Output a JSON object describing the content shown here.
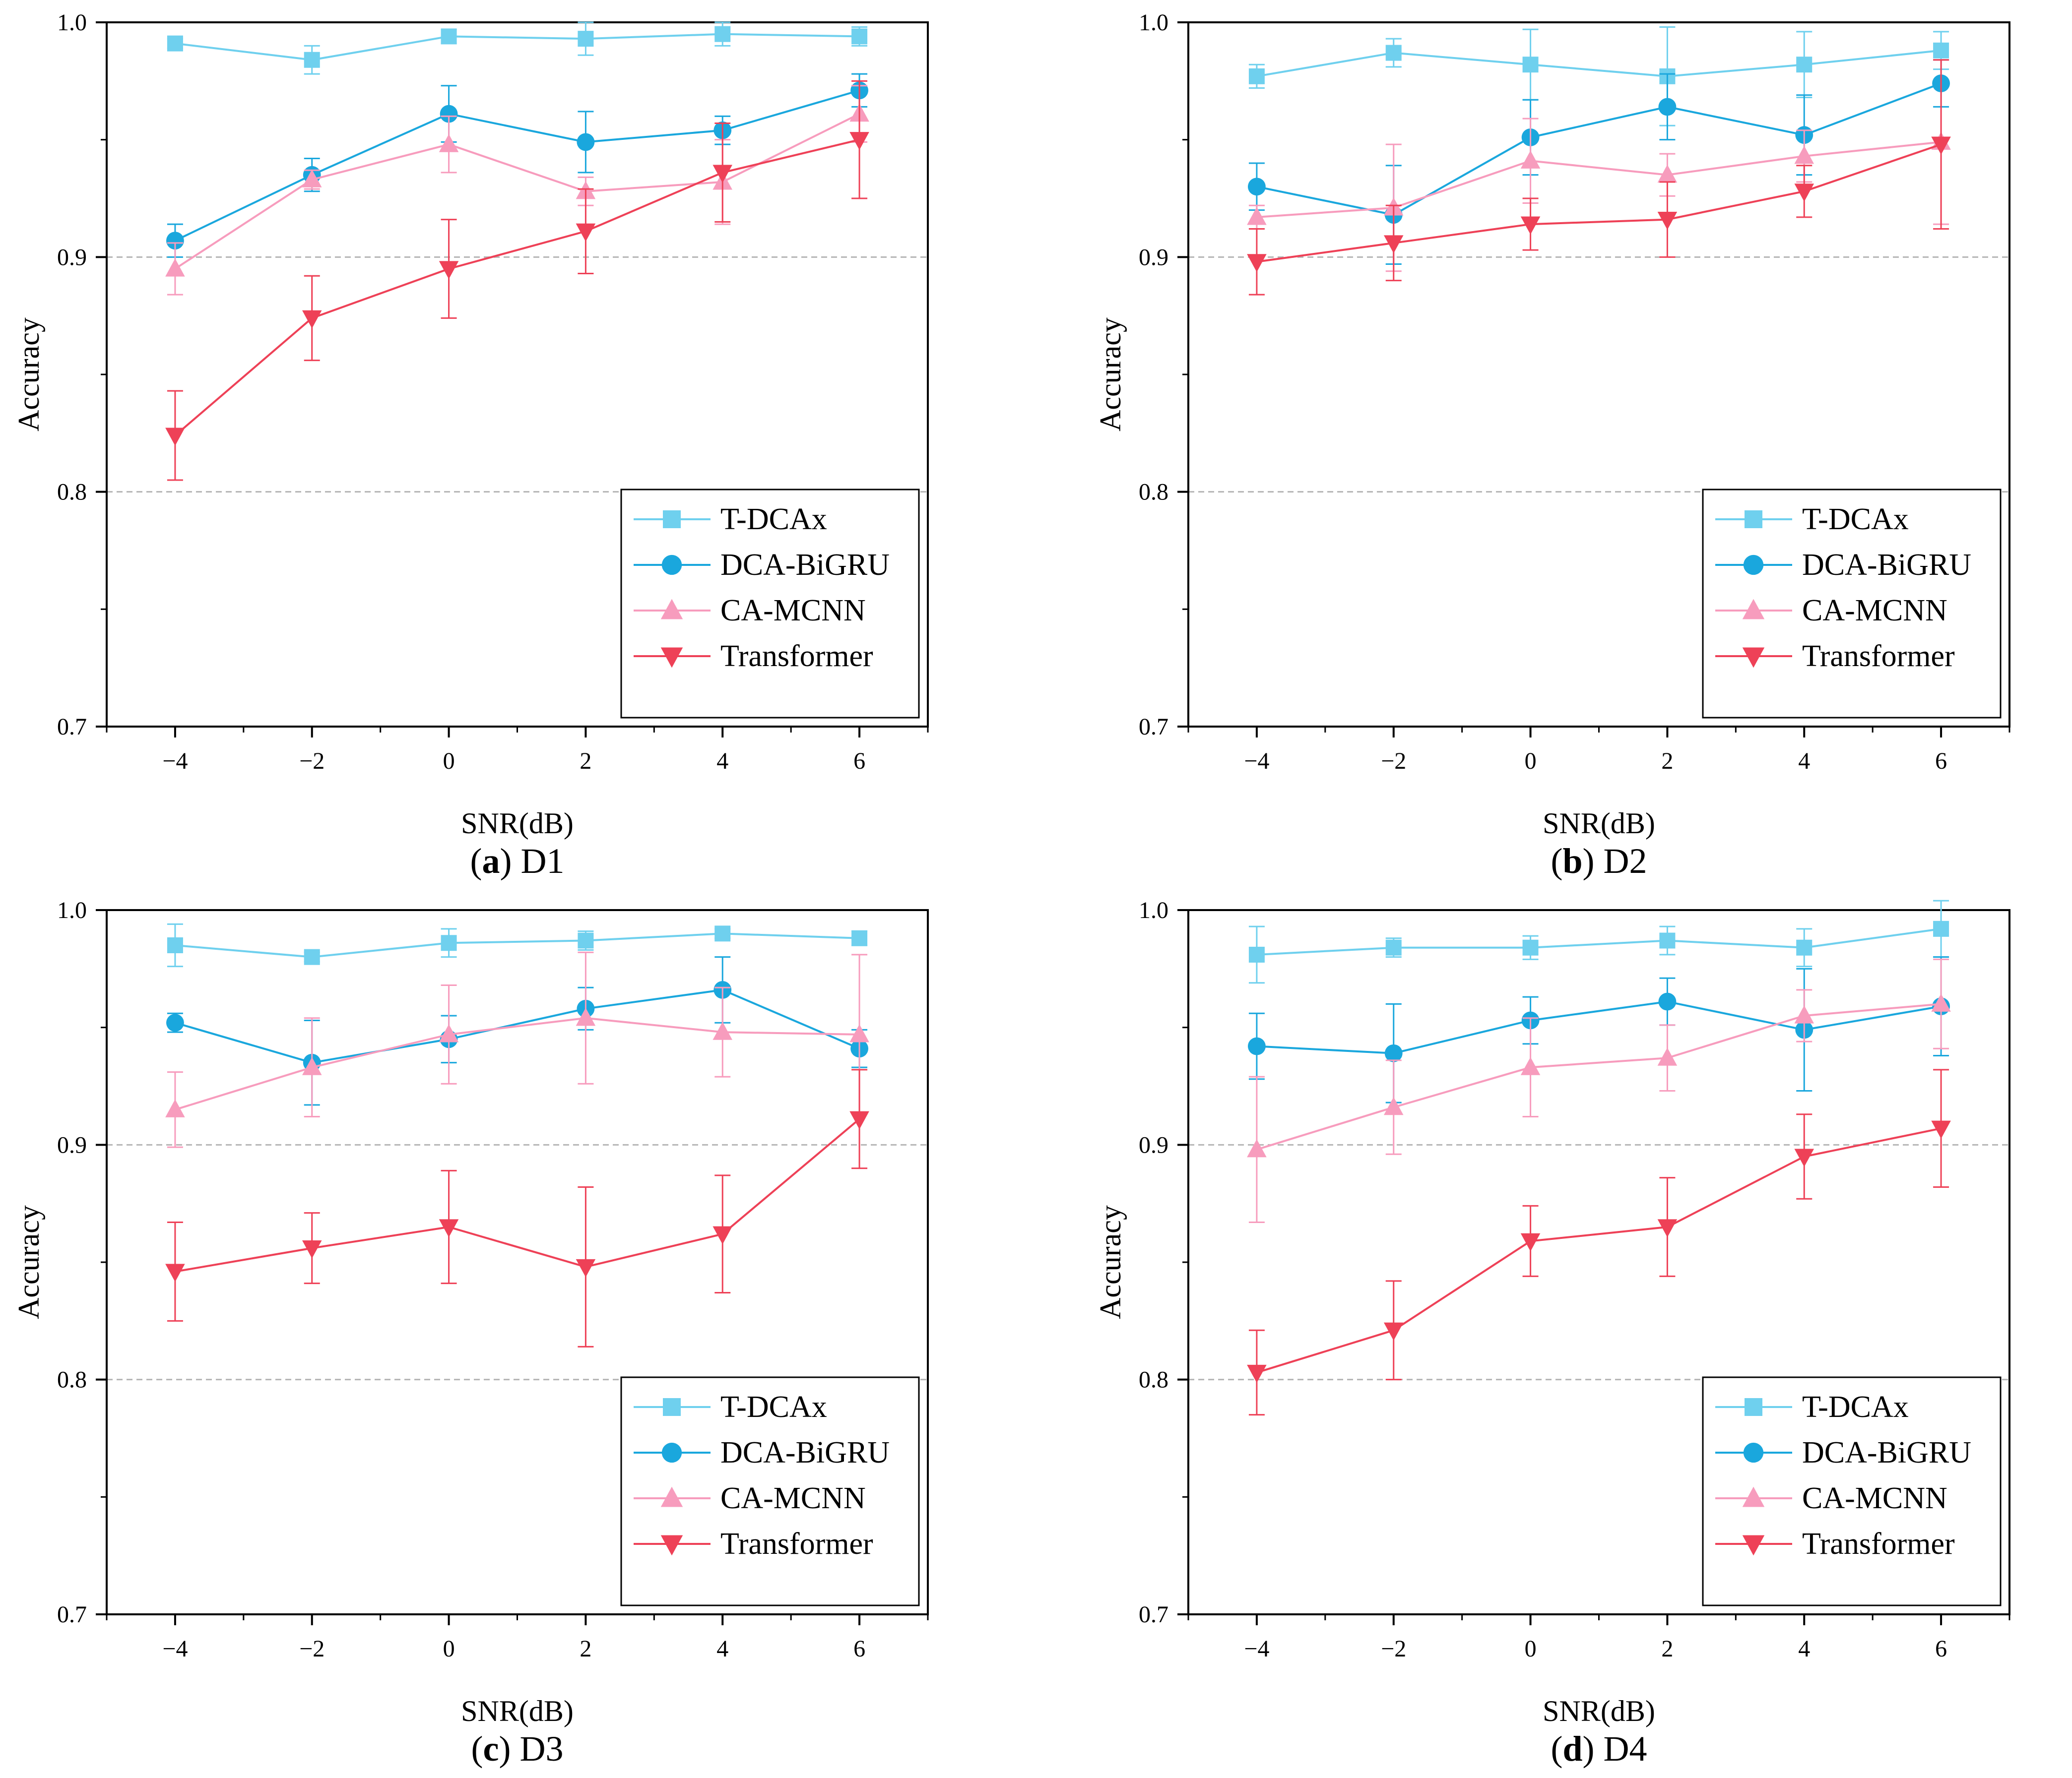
{
  "colors": {
    "T-DCAx": "#6fd0ee",
    "DCA-BiGRU": "#1aa7dd",
    "CA-MCNN": "#f79cbd",
    "Transformer": "#ee4157",
    "grid": "#b5b5b5"
  },
  "chart_data": [
    {
      "type": "line",
      "caption_letter": "(a)",
      "caption_text": "D1",
      "xlabel": "SNR(dB)",
      "ylabel": "Accuracy",
      "x": [
        -4,
        -2,
        0,
        2,
        4,
        6
      ],
      "xticklabels": [
        "−4",
        "−2",
        "0",
        "2",
        "4",
        "6"
      ],
      "yticks": [
        0.7,
        0.8,
        0.9,
        1.0
      ],
      "yticklabels": [
        "0.7",
        "0.8",
        "0.9",
        "1.0"
      ],
      "ylim": [
        0.7,
        1.0
      ],
      "xlim": [
        -5,
        7
      ],
      "grid": "dashed horizontal at 0.8 and 0.9",
      "legend_position": "bottom-right",
      "series": [
        {
          "name": "T-DCAx",
          "marker": "square",
          "values": [
            0.991,
            0.984,
            0.994,
            0.993,
            0.995,
            0.994
          ],
          "errors": [
            0.002,
            0.006,
            0.003,
            0.007,
            0.005,
            0.004
          ]
        },
        {
          "name": "DCA-BiGRU",
          "marker": "circle",
          "values": [
            0.907,
            0.935,
            0.961,
            0.949,
            0.954,
            0.971
          ],
          "errors": [
            0.007,
            0.007,
            0.012,
            0.013,
            0.006,
            0.007
          ]
        },
        {
          "name": "CA-MCNN",
          "marker": "triangle-up",
          "values": [
            0.895,
            0.933,
            0.948,
            0.928,
            0.932,
            0.961
          ],
          "errors": [
            0.011,
            0.004,
            0.012,
            0.006,
            0.018,
            0.012
          ]
        },
        {
          "name": "Transformer",
          "marker": "triangle-down",
          "values": [
            0.824,
            0.874,
            0.895,
            0.911,
            0.936,
            0.95
          ],
          "errors": [
            0.019,
            0.018,
            0.021,
            0.018,
            0.021,
            0.025
          ]
        }
      ]
    },
    {
      "type": "line",
      "caption_letter": "(b)",
      "caption_text": "D2",
      "xlabel": "SNR(dB)",
      "ylabel": "Accuracy",
      "x": [
        -4,
        -2,
        0,
        2,
        4,
        6
      ],
      "xticklabels": [
        "−4",
        "−2",
        "0",
        "2",
        "4",
        "6"
      ],
      "yticks": [
        0.7,
        0.8,
        0.9,
        1.0
      ],
      "yticklabels": [
        "0.7",
        "0.8",
        "0.9",
        "1.0"
      ],
      "ylim": [
        0.7,
        1.0
      ],
      "xlim": [
        -5,
        7
      ],
      "grid": "dashed horizontal at 0.8 and 0.9",
      "legend_position": "bottom-right",
      "series": [
        {
          "name": "T-DCAx",
          "marker": "square",
          "values": [
            0.977,
            0.987,
            0.982,
            0.977,
            0.982,
            0.988
          ],
          "errors": [
            0.005,
            0.006,
            0.015,
            0.021,
            0.014,
            0.008
          ]
        },
        {
          "name": "DCA-BiGRU",
          "marker": "circle",
          "values": [
            0.93,
            0.918,
            0.951,
            0.964,
            0.952,
            0.974
          ],
          "errors": [
            0.01,
            0.021,
            0.016,
            0.014,
            0.017,
            0.01
          ]
        },
        {
          "name": "CA-MCNN",
          "marker": "triangle-up",
          "values": [
            0.917,
            0.921,
            0.941,
            0.935,
            0.943,
            0.949
          ],
          "errors": [
            0.005,
            0.027,
            0.018,
            0.009,
            0.011,
            0.035
          ]
        },
        {
          "name": "Transformer",
          "marker": "triangle-down",
          "values": [
            0.898,
            0.906,
            0.914,
            0.916,
            0.928,
            0.948
          ],
          "errors": [
            0.014,
            0.016,
            0.011,
            0.016,
            0.011,
            0.036
          ]
        }
      ]
    },
    {
      "type": "line",
      "caption_letter": "(c)",
      "caption_text": "D3",
      "xlabel": "SNR(dB)",
      "ylabel": "Accuracy",
      "x": [
        -4,
        -2,
        0,
        2,
        4,
        6
      ],
      "xticklabels": [
        "−4",
        "−2",
        "0",
        "2",
        "4",
        "6"
      ],
      "yticks": [
        0.7,
        0.8,
        0.9,
        1.0
      ],
      "yticklabels": [
        "0.7",
        "0.8",
        "0.9",
        "1.0"
      ],
      "ylim": [
        0.7,
        1.0
      ],
      "xlim": [
        -5,
        7
      ],
      "grid": "dashed horizontal at 0.8 and 0.9",
      "legend_position": "bottom-right",
      "series": [
        {
          "name": "T-DCAx",
          "marker": "square",
          "values": [
            0.985,
            0.98,
            0.986,
            0.987,
            0.99,
            0.988
          ],
          "errors": [
            0.009,
            0.002,
            0.006,
            0.004,
            0.002,
            0.003
          ]
        },
        {
          "name": "DCA-BiGRU",
          "marker": "circle",
          "values": [
            0.952,
            0.935,
            0.945,
            0.958,
            0.966,
            0.941
          ],
          "errors": [
            0.004,
            0.018,
            0.01,
            0.009,
            0.014,
            0.008
          ]
        },
        {
          "name": "CA-MCNN",
          "marker": "triangle-up",
          "values": [
            0.915,
            0.933,
            0.947,
            0.954,
            0.948,
            0.947
          ],
          "errors": [
            0.016,
            0.021,
            0.021,
            0.028,
            0.019,
            0.034
          ]
        },
        {
          "name": "Transformer",
          "marker": "triangle-down",
          "values": [
            0.846,
            0.856,
            0.865,
            0.848,
            0.862,
            0.911
          ],
          "errors": [
            0.021,
            0.015,
            0.024,
            0.034,
            0.025,
            0.021
          ]
        }
      ]
    },
    {
      "type": "line",
      "caption_letter": "(d)",
      "caption_text": "D4",
      "xlabel": "SNR(dB)",
      "ylabel": "Accuracy",
      "x": [
        -4,
        -2,
        0,
        2,
        4,
        6
      ],
      "xticklabels": [
        "−4",
        "−2",
        "0",
        "2",
        "4",
        "6"
      ],
      "yticks": [
        0.7,
        0.8,
        0.9,
        1.0
      ],
      "yticklabels": [
        "0.7",
        "0.8",
        "0.9",
        "1.0"
      ],
      "ylim": [
        0.7,
        1.0
      ],
      "xlim": [
        -5,
        7
      ],
      "grid": "dashed horizontal at 0.8 and 0.9",
      "legend_position": "bottom-right",
      "series": [
        {
          "name": "T-DCAx",
          "marker": "square",
          "values": [
            0.981,
            0.984,
            0.984,
            0.987,
            0.984,
            0.992
          ],
          "errors": [
            0.012,
            0.004,
            0.005,
            0.006,
            0.008,
            0.012
          ]
        },
        {
          "name": "DCA-BiGRU",
          "marker": "circle",
          "values": [
            0.942,
            0.939,
            0.953,
            0.961,
            0.949,
            0.959
          ],
          "errors": [
            0.014,
            0.021,
            0.01,
            0.01,
            0.026,
            0.021
          ]
        },
        {
          "name": "CA-MCNN",
          "marker": "triangle-up",
          "values": [
            0.898,
            0.916,
            0.933,
            0.937,
            0.955,
            0.96
          ],
          "errors": [
            0.031,
            0.02,
            0.021,
            0.014,
            0.011,
            0.019
          ]
        },
        {
          "name": "Transformer",
          "marker": "triangle-down",
          "values": [
            0.803,
            0.821,
            0.859,
            0.865,
            0.895,
            0.907
          ],
          "errors": [
            0.018,
            0.021,
            0.015,
            0.021,
            0.018,
            0.025
          ]
        }
      ]
    }
  ]
}
